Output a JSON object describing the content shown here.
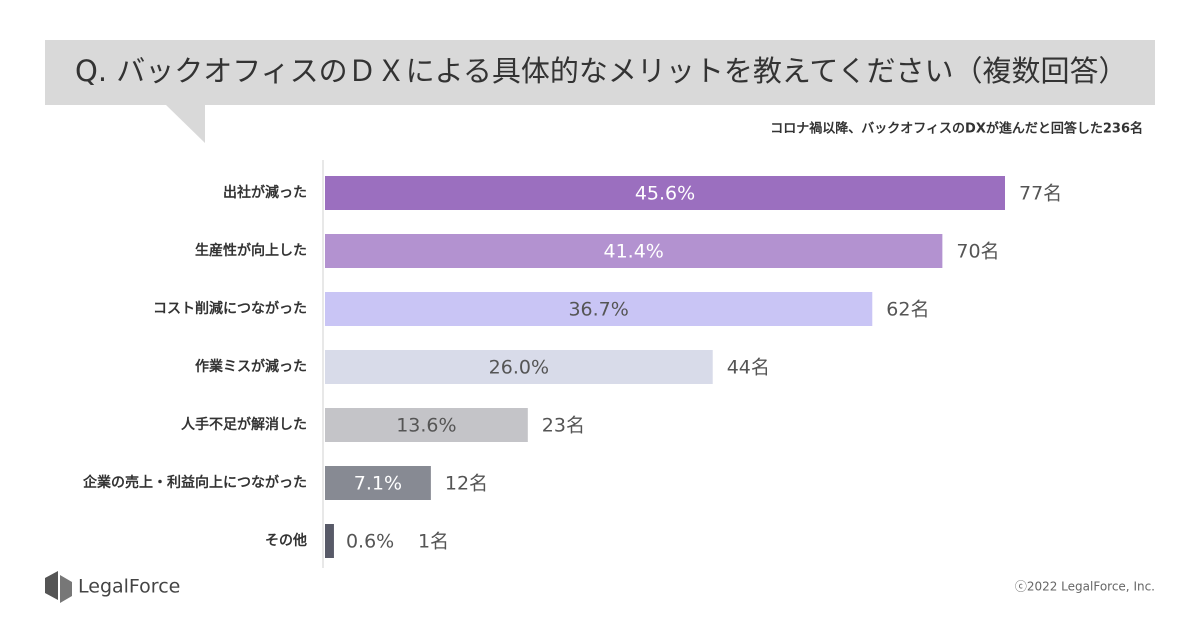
{
  "chart_data": {
    "type": "hbar",
    "title": "Q. バックオフィスのＤＸによる具体的なメリットを教えてください（複数回答）",
    "subtitle": "コロナ禍以降、バックオフィスのDXが進んだと回答した236名",
    "categories": [
      "出社が減った",
      "生産性が向上した",
      "コスト削減につながった",
      "作業ミスが減った",
      "人手不足が解消した",
      "企業の売上・利益向上につながった",
      "その他"
    ],
    "values": [
      45.6,
      41.4,
      36.7,
      26.0,
      13.6,
      7.1,
      0.6
    ],
    "value_labels": [
      "45.6%",
      "41.4%",
      "36.7%",
      "26.0%",
      "13.6%",
      "7.1%",
      "0.6%"
    ],
    "counts": [
      77,
      70,
      62,
      44,
      23,
      12,
      1
    ],
    "count_labels": [
      "77名",
      "70名",
      "62名",
      "44名",
      "23名",
      "12名",
      "1名"
    ],
    "colors": [
      "#9b6fbf",
      "#b392d0",
      "#c9c5f5",
      "#d8dbe9",
      "#c4c4c8",
      "#878a93",
      "#585a68"
    ]
  },
  "footer": {
    "logo": "LegalForce",
    "copyright": "ⓒ2022 LegalForce, Inc."
  }
}
